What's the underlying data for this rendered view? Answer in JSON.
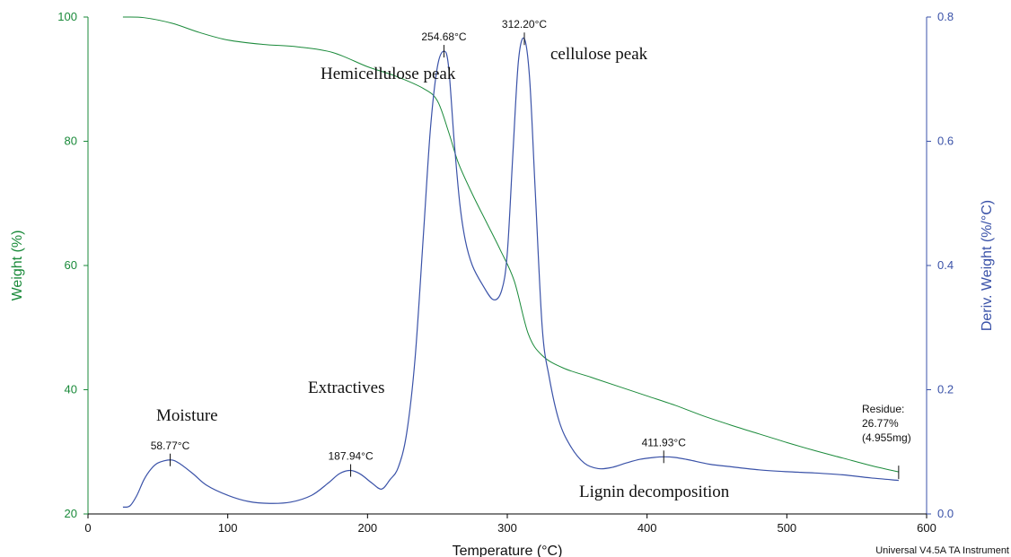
{
  "chart_data": {
    "type": "line",
    "title": "",
    "xlabel": "Temperature (°C)",
    "ylabel_left": "Weight (%)",
    "ylabel_right": "Deriv. Weight (%/°C)",
    "xlim": [
      0,
      600
    ],
    "ylim_left": [
      20,
      100
    ],
    "ylim_right": [
      0.0,
      0.8
    ],
    "x_ticks": [
      "0",
      "100",
      "200",
      "300",
      "400",
      "500",
      "600"
    ],
    "y_left_ticks": [
      "20",
      "40",
      "60",
      "80",
      "100"
    ],
    "y_right_ticks": [
      "0.0",
      "0.2",
      "0.4",
      "0.6",
      "0.8"
    ],
    "grid": false,
    "colors": {
      "weight": "#1a8a3a",
      "deriv": "#3a52a8",
      "left_axis": "#1a8a3a",
      "right_axis": "#3a52a8"
    },
    "series": [
      {
        "axis": "left",
        "x": [
          25,
          40,
          60,
          80,
          100,
          125,
          150,
          175,
          200,
          220,
          240,
          250,
          258,
          265,
          275,
          285,
          295,
          305,
          315,
          325,
          340,
          360,
          380,
          400,
          420,
          440,
          460,
          480,
          500,
          520,
          540,
          560,
          580
        ],
        "y": [
          100,
          99.9,
          99,
          97.5,
          96.3,
          95.6,
          95.2,
          94.3,
          92.0,
          90.5,
          88.5,
          86.5,
          81.5,
          76.5,
          71.5,
          67.0,
          62.5,
          57.5,
          49.0,
          45.5,
          43.5,
          42.0,
          40.5,
          39.0,
          37.5,
          35.8,
          34.3,
          32.9,
          31.5,
          30.2,
          29.0,
          27.8,
          26.77
        ]
      },
      {
        "axis": "right",
        "x": [
          25,
          30,
          35,
          40,
          45,
          50,
          58.77,
          65,
          75,
          85,
          100,
          115,
          130,
          145,
          160,
          172,
          180,
          187.94,
          195,
          203,
          210,
          216,
          222,
          228,
          234,
          240,
          245,
          250,
          254.68,
          258,
          262,
          266,
          270,
          275,
          282,
          290,
          296,
          300,
          304,
          308,
          312.2,
          316,
          320,
          325,
          330,
          337,
          345,
          355,
          365,
          375,
          385,
          395,
          405,
          411.93,
          420,
          430,
          445,
          460,
          480,
          500,
          520,
          540,
          560,
          580
        ],
        "y": [
          0.011,
          0.013,
          0.03,
          0.055,
          0.072,
          0.082,
          0.087,
          0.082,
          0.065,
          0.046,
          0.03,
          0.02,
          0.017,
          0.019,
          0.03,
          0.05,
          0.065,
          0.07,
          0.064,
          0.05,
          0.04,
          0.055,
          0.075,
          0.13,
          0.25,
          0.45,
          0.62,
          0.72,
          0.745,
          0.72,
          0.6,
          0.5,
          0.44,
          0.4,
          0.37,
          0.345,
          0.36,
          0.42,
          0.58,
          0.73,
          0.765,
          0.7,
          0.52,
          0.3,
          0.22,
          0.15,
          0.11,
          0.082,
          0.073,
          0.075,
          0.082,
          0.088,
          0.091,
          0.092,
          0.091,
          0.087,
          0.08,
          0.076,
          0.071,
          0.068,
          0.066,
          0.063,
          0.058,
          0.054
        ]
      }
    ],
    "peak_markers": [
      {
        "label": "58.77°C",
        "x": 58.77,
        "y": 0.087
      },
      {
        "label": "187.94°C",
        "x": 187.94,
        "y": 0.07
      },
      {
        "label": "254.68°C",
        "x": 254.68,
        "y": 0.745
      },
      {
        "label": "312.20°C",
        "x": 312.2,
        "y": 0.765
      },
      {
        "label": "411.93°C",
        "x": 411.93,
        "y": 0.092
      }
    ],
    "residue": {
      "x": 580,
      "y": 26.77,
      "lines": [
        "Residue:",
        "26.77%",
        "(4.955mg)"
      ]
    },
    "annotations": [
      "Hemicellulose peak",
      "cellulose peak",
      "Extractives",
      "Moisture",
      "Lignin decomposition"
    ],
    "footer": "Universal V4.5A TA Instrument"
  }
}
